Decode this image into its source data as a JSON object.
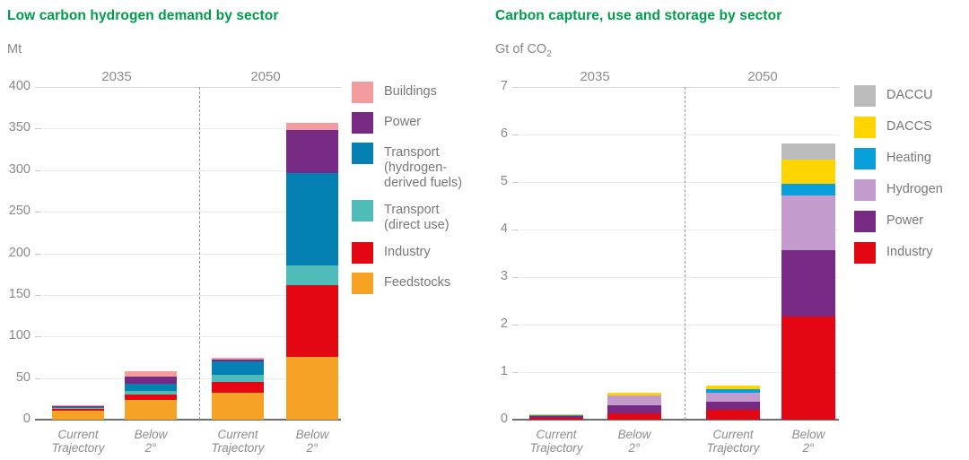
{
  "page": {
    "background": "#FFFFFF",
    "title_color": "#009C4A",
    "axis_text_color": "#87898C"
  },
  "chart_data": [
    {
      "type": "bar",
      "stacked": true,
      "title": "Low carbon hydrogen demand by sector",
      "unit": "Mt",
      "unit_subscript": "",
      "ylim": [
        0,
        400
      ],
      "yticks": [
        400,
        350,
        300,
        250,
        200,
        150,
        100,
        50,
        0
      ],
      "grid": true,
      "legend_position": "right",
      "group_labels": [
        "2035",
        "2050"
      ],
      "categories": [
        "Current\nTrajectory",
        "Below\n2°",
        "Current\nTrajectory",
        "Below\n2°"
      ],
      "series": [
        {
          "name": "Feedstocks",
          "color": "#F6A325",
          "values": [
            11,
            24,
            32,
            75
          ]
        },
        {
          "name": "Industry",
          "color": "#E30613",
          "values": [
            2,
            6,
            13,
            87
          ]
        },
        {
          "name": "Transport (direct use)",
          "color": "#50BCBA",
          "values": [
            1,
            4,
            9,
            23
          ]
        },
        {
          "name": "Transport (hydrogen-derived fuels)",
          "color": "#0481B2",
          "values": [
            2,
            9,
            16,
            111
          ]
        },
        {
          "name": "Power",
          "color": "#772A83",
          "values": [
            0.5,
            9,
            2,
            52
          ]
        },
        {
          "name": "Buildings",
          "color": "#F49BA0",
          "values": [
            0.5,
            6,
            2,
            9
          ]
        }
      ],
      "legend": [
        {
          "label": "Buildings",
          "color": "#F49BA0"
        },
        {
          "label": "Power",
          "color": "#772A83"
        },
        {
          "label": "Transport\n(hydrogen-\nderived fuels)",
          "color": "#0481B2"
        },
        {
          "label": "Transport\n(direct use)",
          "color": "#50BCBA"
        },
        {
          "label": "Industry",
          "color": "#E30613"
        },
        {
          "label": "Feedstocks",
          "color": "#F6A325"
        }
      ]
    },
    {
      "type": "bar",
      "stacked": true,
      "title": "Carbon capture, use and storage by sector",
      "unit": "Gt of CO",
      "unit_subscript": "2",
      "ylim": [
        0,
        7
      ],
      "yticks": [
        7,
        6,
        5,
        4,
        3,
        2,
        1,
        0
      ],
      "grid": true,
      "legend_position": "right",
      "group_labels": [
        "2035",
        "2050"
      ],
      "categories": [
        "Current\nTrajectory",
        "Below\n2°",
        "Current\nTrajectory",
        "Below\n2°"
      ],
      "series": [
        {
          "name": "Industry",
          "color": "#E30613",
          "values": [
            0.04,
            0.13,
            0.21,
            2.17
          ]
        },
        {
          "name": "Power",
          "color": "#772A83",
          "values": [
            0.03,
            0.18,
            0.17,
            1.4
          ]
        },
        {
          "name": "Hydrogen",
          "color": "#C49BCD",
          "values": [
            0.02,
            0.2,
            0.18,
            1.15
          ]
        },
        {
          "name": "Heating",
          "color": "#099FDB",
          "values": [
            0.01,
            0,
            0.08,
            0.25
          ]
        },
        {
          "name": "DACCS",
          "color": "#FFD500",
          "values": [
            0.01,
            0.06,
            0.07,
            0.5
          ]
        },
        {
          "name": "DACCU",
          "color": "#BCBCBC",
          "values": [
            0,
            0,
            0,
            0.35
          ]
        }
      ],
      "legend": [
        {
          "label": "DACCU",
          "color": "#BCBCBC"
        },
        {
          "label": "DACCS",
          "color": "#FFD500"
        },
        {
          "label": "Heating",
          "color": "#099FDB"
        },
        {
          "label": "Hydrogen",
          "color": "#C49BCD"
        },
        {
          "label": "Power",
          "color": "#772A83"
        },
        {
          "label": "Industry",
          "color": "#E30613"
        }
      ]
    }
  ]
}
